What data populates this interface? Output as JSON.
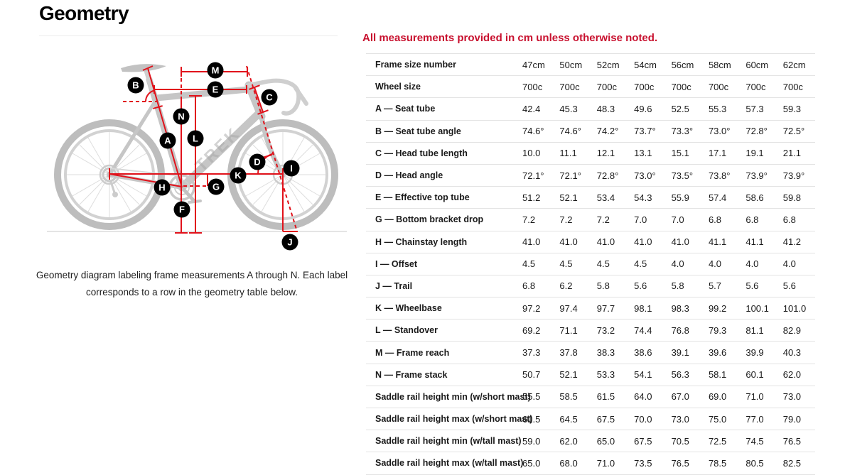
{
  "page": {
    "title": "Geometry"
  },
  "note": {
    "text": "All measurements provided in cm unless otherwise noted."
  },
  "diagram": {
    "caption": "Geometry diagram labeling frame measurements A through N. Each label corresponds to a row in the geometry table below.",
    "bike_logo": "TREK",
    "label_letters": [
      "M",
      "B",
      "E",
      "C",
      "N",
      "A",
      "L",
      "D",
      "I",
      "K",
      "H",
      "G",
      "F",
      "J"
    ]
  },
  "table": {
    "rows": [
      {
        "label": "Frame size number",
        "values": [
          "47cm",
          "50cm",
          "52cm",
          "54cm",
          "56cm",
          "58cm",
          "60cm",
          "62cm"
        ]
      },
      {
        "label": "Wheel size",
        "values": [
          "700c",
          "700c",
          "700c",
          "700c",
          "700c",
          "700c",
          "700c",
          "700c"
        ]
      },
      {
        "label": "A — Seat tube",
        "values": [
          "42.4",
          "45.3",
          "48.3",
          "49.6",
          "52.5",
          "55.3",
          "57.3",
          "59.3"
        ]
      },
      {
        "label": "B — Seat tube angle",
        "values": [
          "74.6°",
          "74.6°",
          "74.2°",
          "73.7°",
          "73.3°",
          "73.0°",
          "72.8°",
          "72.5°"
        ]
      },
      {
        "label": "C — Head tube length",
        "values": [
          "10.0",
          "11.1",
          "12.1",
          "13.1",
          "15.1",
          "17.1",
          "19.1",
          "21.1"
        ]
      },
      {
        "label": "D — Head angle",
        "values": [
          "72.1°",
          "72.1°",
          "72.8°",
          "73.0°",
          "73.5°",
          "73.8°",
          "73.9°",
          "73.9°"
        ]
      },
      {
        "label": "E — Effective top tube",
        "values": [
          "51.2",
          "52.1",
          "53.4",
          "54.3",
          "55.9",
          "57.4",
          "58.6",
          "59.8"
        ]
      },
      {
        "label": "G — Bottom bracket drop",
        "values": [
          "7.2",
          "7.2",
          "7.2",
          "7.0",
          "7.0",
          "6.8",
          "6.8",
          "6.8"
        ]
      },
      {
        "label": "H — Chainstay length",
        "values": [
          "41.0",
          "41.0",
          "41.0",
          "41.0",
          "41.0",
          "41.1",
          "41.1",
          "41.2"
        ]
      },
      {
        "label": "I — Offset",
        "values": [
          "4.5",
          "4.5",
          "4.5",
          "4.5",
          "4.0",
          "4.0",
          "4.0",
          "4.0"
        ]
      },
      {
        "label": "J — Trail",
        "values": [
          "6.8",
          "6.2",
          "5.8",
          "5.6",
          "5.8",
          "5.7",
          "5.6",
          "5.6"
        ]
      },
      {
        "label": "K — Wheelbase",
        "values": [
          "97.2",
          "97.4",
          "97.7",
          "98.1",
          "98.3",
          "99.2",
          "100.1",
          "101.0"
        ]
      },
      {
        "label": "L — Standover",
        "values": [
          "69.2",
          "71.1",
          "73.2",
          "74.4",
          "76.8",
          "79.3",
          "81.1",
          "82.9"
        ]
      },
      {
        "label": "M — Frame reach",
        "values": [
          "37.3",
          "37.8",
          "38.3",
          "38.6",
          "39.1",
          "39.6",
          "39.9",
          "40.3"
        ]
      },
      {
        "label": "N — Frame stack",
        "values": [
          "50.7",
          "52.1",
          "53.3",
          "54.1",
          "56.3",
          "58.1",
          "60.1",
          "62.0"
        ]
      },
      {
        "label": "Saddle rail height min (w/short mast)",
        "values": [
          "55.5",
          "58.5",
          "61.5",
          "64.0",
          "67.0",
          "69.0",
          "71.0",
          "73.0"
        ]
      },
      {
        "label": "Saddle rail height max (w/short mast)",
        "values": [
          "61.5",
          "64.5",
          "67.5",
          "70.0",
          "73.0",
          "75.0",
          "77.0",
          "79.0"
        ]
      },
      {
        "label": "Saddle rail height min (w/tall mast)",
        "values": [
          "59.0",
          "62.0",
          "65.0",
          "67.5",
          "70.5",
          "72.5",
          "74.5",
          "76.5"
        ]
      },
      {
        "label": "Saddle rail height max (w/tall mast)",
        "values": [
          "65.0",
          "68.0",
          "71.0",
          "73.5",
          "76.5",
          "78.5",
          "80.5",
          "82.5"
        ]
      }
    ]
  },
  "colors": {
    "accent_red_text": "#c8102e",
    "measurement_red": "#e1121b",
    "marker_black": "#000000",
    "bike_gray": "#c6c6c6",
    "divider_gray": "#e3e3e3"
  }
}
